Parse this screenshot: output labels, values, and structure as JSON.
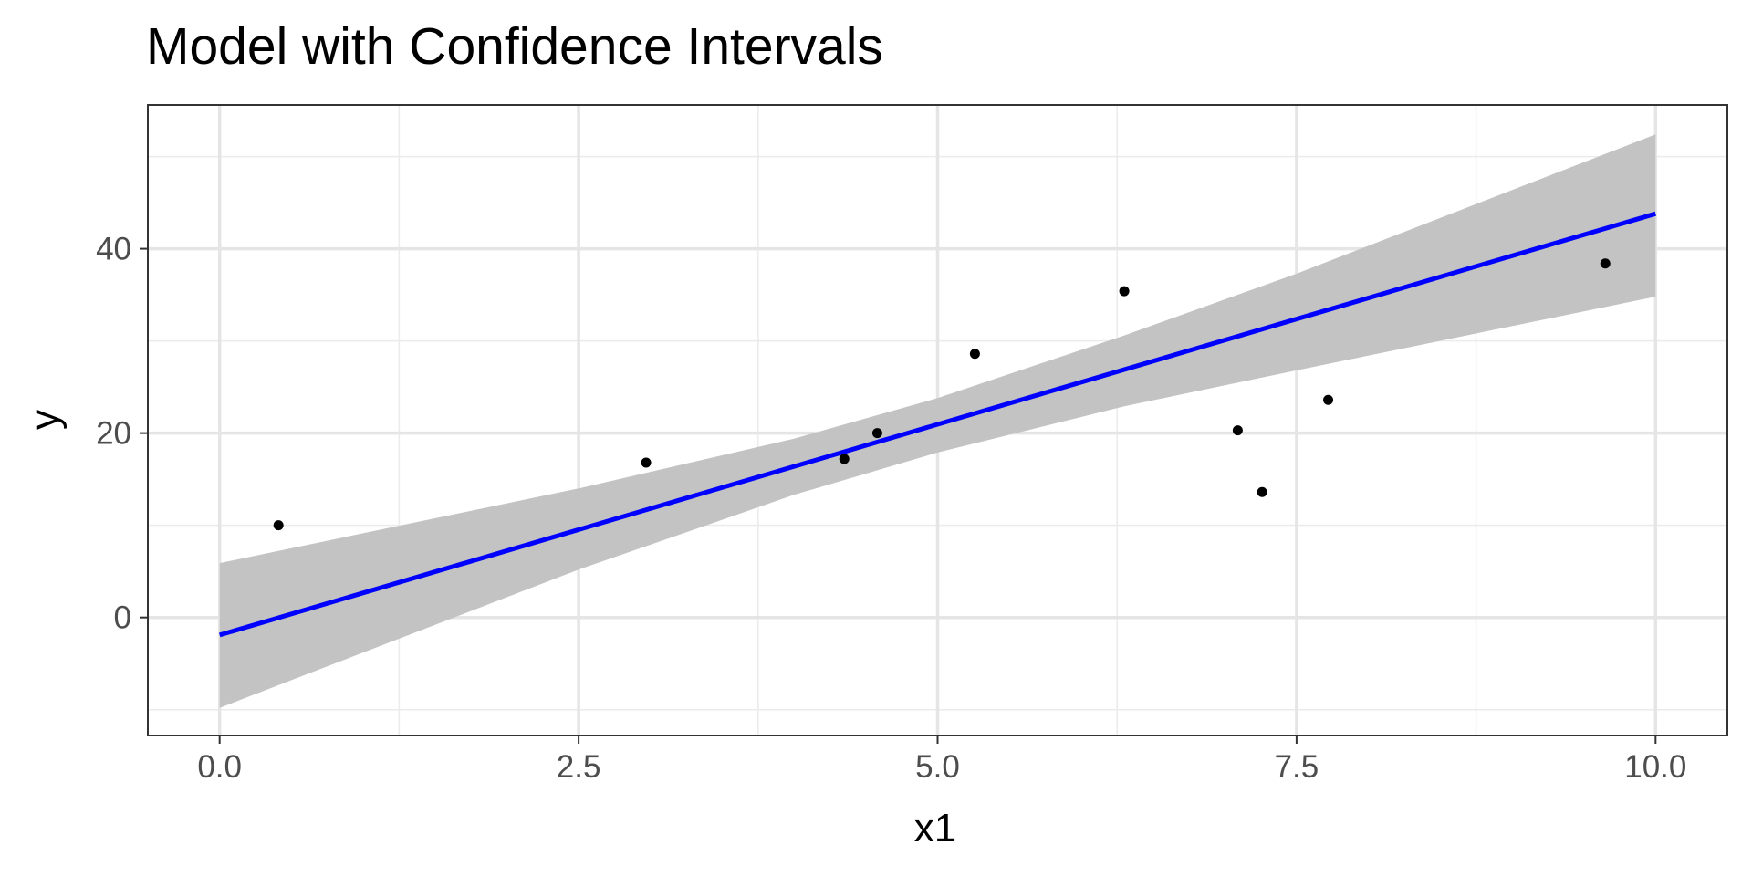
{
  "chart_data": {
    "type": "scatter",
    "title": "Model with Confidence Intervals",
    "xlabel": "x1",
    "ylabel": "y",
    "xlim": [
      -0.5,
      10.5
    ],
    "ylim": [
      -12.8,
      55.6
    ],
    "x_ticks": [
      0,
      2.5,
      5,
      7.5,
      10
    ],
    "x_tick_labels": [
      "0.0",
      "2.5",
      "5.0",
      "7.5",
      "10.0"
    ],
    "x_minor_ticks": [
      1.25,
      3.75,
      6.25,
      8.75
    ],
    "y_ticks": [
      0,
      20,
      40
    ],
    "y_tick_labels": [
      "0",
      "20",
      "40"
    ],
    "y_minor_ticks": [
      -10,
      10,
      30,
      50
    ],
    "grid": true,
    "series": [
      {
        "type": "points",
        "color": "#000000",
        "points": [
          {
            "x": 0.41,
            "y": 10.0
          },
          {
            "x": 2.97,
            "y": 16.8
          },
          {
            "x": 4.35,
            "y": 17.2
          },
          {
            "x": 4.58,
            "y": 20.0
          },
          {
            "x": 5.26,
            "y": 28.6
          },
          {
            "x": 6.3,
            "y": 35.4
          },
          {
            "x": 7.09,
            "y": 20.3
          },
          {
            "x": 7.26,
            "y": 13.6
          },
          {
            "x": 7.72,
            "y": 23.6
          },
          {
            "x": 9.65,
            "y": 38.4
          }
        ]
      },
      {
        "type": "regression-line",
        "color": "#0000ff",
        "points": [
          {
            "x": 0,
            "y": -1.9
          },
          {
            "x": 10,
            "y": 43.8
          }
        ]
      },
      {
        "type": "confidence-band",
        "color": "#c3c3c3",
        "upper": [
          {
            "x": 0,
            "y": 5.9
          },
          {
            "x": 2.5,
            "y": 14.0
          },
          {
            "x": 4,
            "y": 19.4
          },
          {
            "x": 5,
            "y": 23.8
          },
          {
            "x": 6.3,
            "y": 30.6
          },
          {
            "x": 7.5,
            "y": 37.3
          },
          {
            "x": 10,
            "y": 52.4
          }
        ],
        "lower": [
          {
            "x": 0,
            "y": -9.8
          },
          {
            "x": 2.5,
            "y": 5.2
          },
          {
            "x": 4,
            "y": 13.3
          },
          {
            "x": 5,
            "y": 17.9
          },
          {
            "x": 6.3,
            "y": 22.9
          },
          {
            "x": 7.5,
            "y": 26.8
          },
          {
            "x": 10,
            "y": 34.8
          }
        ]
      }
    ]
  }
}
